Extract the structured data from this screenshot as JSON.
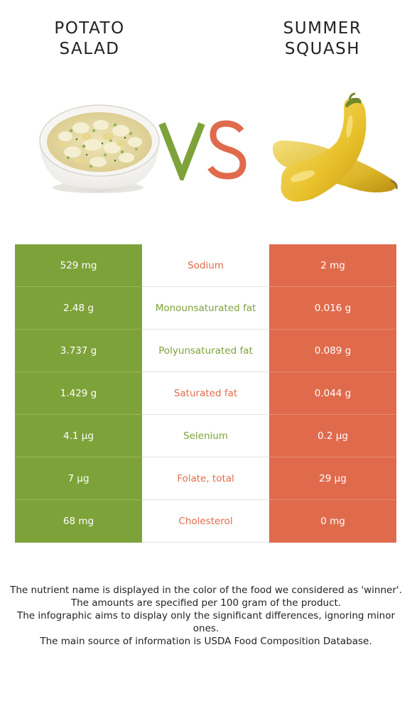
{
  "food_left": {
    "title": "POTATO\nSALAD",
    "color": "#7ea23a"
  },
  "food_right": {
    "title": "SUMMER\nSQUASH",
    "color": "#e06b4c"
  },
  "vs": {
    "left_letter": "V",
    "right_letter": "S"
  },
  "rows": [
    {
      "left": "529 mg",
      "nutrient": "Sodium",
      "right": "2 mg",
      "winner": "right"
    },
    {
      "left": "2.48 g",
      "nutrient": "Monounsaturated fat",
      "right": "0.016 g",
      "winner": "left"
    },
    {
      "left": "3.737 g",
      "nutrient": "Polyunsaturated fat",
      "right": "0.089 g",
      "winner": "left"
    },
    {
      "left": "1.429 g",
      "nutrient": "Saturated fat",
      "right": "0.044 g",
      "winner": "right"
    },
    {
      "left": "4.1 µg",
      "nutrient": "Selenium",
      "right": "0.2 µg",
      "winner": "left"
    },
    {
      "left": "7 µg",
      "nutrient": "Folate, total",
      "right": "29 µg",
      "winner": "right"
    },
    {
      "left": "68 mg",
      "nutrient": "Cholesterol",
      "right": "0 mg",
      "winner": "right"
    }
  ],
  "footer": {
    "line1": "The nutrient name is displayed in the color of the food we considered as 'winner'.",
    "line2": "The amounts are specified per 100 gram of the product.",
    "line3": "The infographic aims to display only the significant differences, ignoring minor ones.",
    "line4": "The main source of information is USDA Food Composition Database."
  }
}
